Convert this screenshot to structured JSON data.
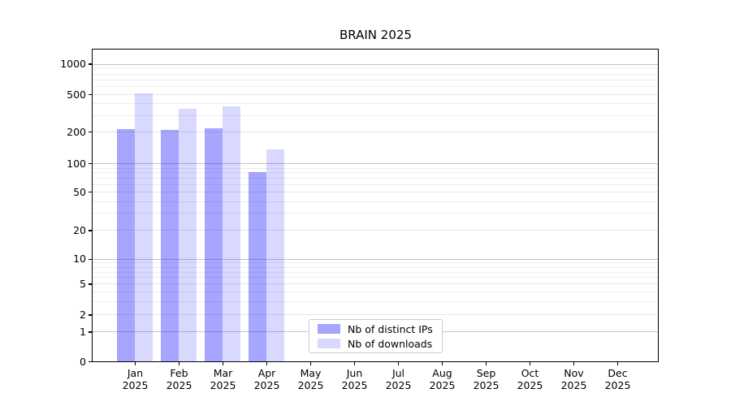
{
  "chart_data": {
    "type": "bar",
    "title": "BRAIN 2025",
    "xlabel": "",
    "ylabel": "",
    "grid": "on",
    "legend_position": "lower center",
    "categories": [
      "Jan 2025",
      "Feb 2025",
      "Mar 2025",
      "Apr 2025",
      "May 2025",
      "Jun 2025",
      "Jul 2025",
      "Aug 2025",
      "Sep 2025",
      "Oct 2025",
      "Nov 2025",
      "Dec 2025"
    ],
    "series": [
      {
        "name": "Nb of distinct IPs",
        "color": "rgba(0,0,255,0.35)",
        "color_on_white": "#a6a6ff",
        "values": [
          215,
          210,
          218,
          80,
          0,
          0,
          0,
          0,
          0,
          0,
          0,
          0
        ]
      },
      {
        "name": "Nb of downloads",
        "color": "rgba(0,0,255,0.15)",
        "color_on_white": "#d9d9ff",
        "values": [
          510,
          350,
          370,
          135,
          0,
          0,
          0,
          0,
          0,
          0,
          0,
          0
        ]
      }
    ],
    "y_axis": {
      "scale": "symlog-like",
      "tick_values": [
        0,
        1,
        2,
        5,
        10,
        20,
        50,
        100,
        200,
        500,
        1000
      ],
      "tick_labels": [
        "0",
        "1",
        "2",
        "5",
        "10",
        "20",
        "50",
        "100",
        "200",
        "500",
        "1000"
      ]
    },
    "y_scale_stops": [
      [
        0,
        0.0
      ],
      [
        1,
        0.0952
      ],
      [
        2,
        0.1499
      ],
      [
        5,
        0.249
      ],
      [
        10,
        0.3286
      ],
      [
        20,
        0.4211
      ],
      [
        50,
        0.5437
      ],
      [
        100,
        0.6349
      ],
      [
        200,
        0.7366
      ],
      [
        500,
        0.8566
      ],
      [
        1000,
        0.9544
      ]
    ],
    "y_minor_gridlines": [
      3,
      4,
      6,
      7,
      8,
      9,
      30,
      40,
      60,
      70,
      80,
      90,
      300,
      400,
      600,
      700,
      800,
      900
    ]
  }
}
